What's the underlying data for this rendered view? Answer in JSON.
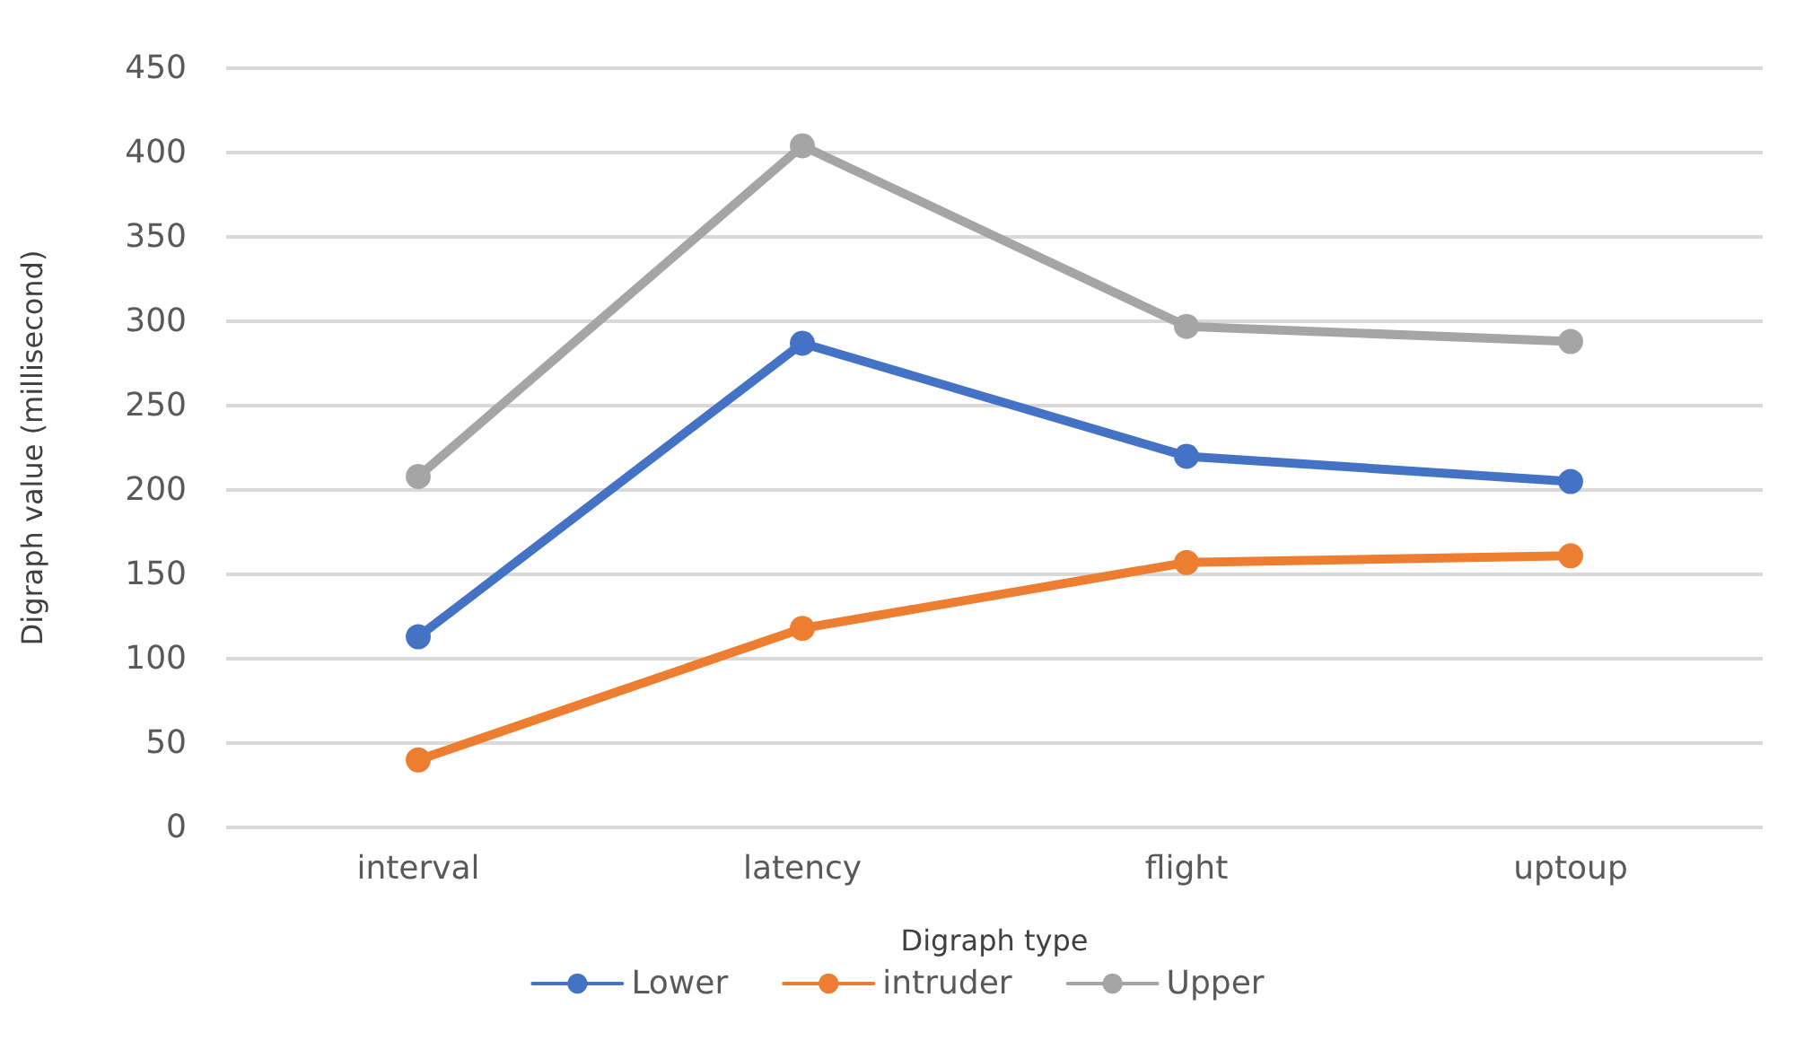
{
  "chart_data": {
    "type": "line",
    "xlabel": "Digraph type",
    "ylabel": "Digraph value (millisecond)",
    "categories": [
      "interval",
      "latency",
      "flight",
      "uptoup"
    ],
    "series": [
      {
        "name": "Lower",
        "color": "#4472c4",
        "values": [
          113,
          287,
          220,
          205
        ]
      },
      {
        "name": "intruder",
        "color": "#ed7d31",
        "values": [
          40,
          118,
          157,
          161
        ]
      },
      {
        "name": "Upper",
        "color": "#a5a5a5",
        "values": [
          208,
          404,
          297,
          288
        ]
      }
    ],
    "ylim": [
      0,
      450
    ],
    "yticks": [
      0,
      50,
      100,
      150,
      200,
      250,
      300,
      350,
      400,
      450
    ],
    "grid": "y",
    "legend": "bottom",
    "marker": "circle",
    "line_style": "solid"
  }
}
